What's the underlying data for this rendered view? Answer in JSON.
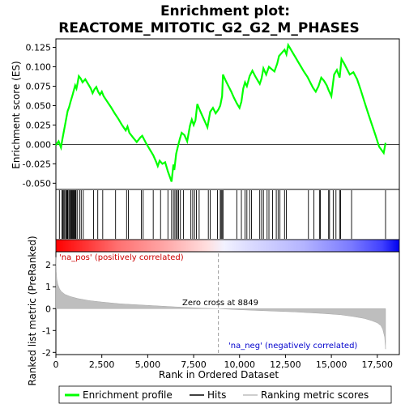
{
  "chart_data": {
    "type": "line",
    "title_line1": "Enrichment plot:",
    "title_line2": "REACTOME_MITOTIC_G2_G2_M_PHASES",
    "panels": {
      "es": {
        "ylabel": "Enrichment score (ES)",
        "ylim": [
          -0.058,
          0.136
        ],
        "yticks": [
          -0.05,
          -0.025,
          0.0,
          0.025,
          0.05,
          0.075,
          0.1,
          0.125
        ],
        "ytick_labels": [
          "-0.050",
          "-0.025",
          "0.000",
          "0.025",
          "0.050",
          "0.075",
          "0.100",
          "0.125"
        ],
        "line_color": "#00ff00",
        "series": [
          {
            "x": [
              0,
              150,
              280,
              350,
              420,
              500,
              560,
              640,
              720,
              800,
              900,
              980,
              1050,
              1120,
              1180,
              1250,
              1350,
              1450,
              1600,
              1750,
              1900,
              2000,
              2100,
              2200,
              2300,
              2400,
              2500,
              2600,
              2800,
              3000,
              3200,
              3400,
              3600,
              3800,
              3900,
              4000,
              4200,
              4400,
              4600,
              4700,
              4900,
              5100,
              5300,
              5450,
              5550,
              5650,
              5800,
              5950,
              6100,
              6300,
              6400,
              6450,
              6550,
              6650,
              6750,
              6850,
              7000,
              7150,
              7300,
              7400,
              7500,
              7600,
              7700,
              7800,
              7950,
              8100,
              8250,
              8400,
              8550,
              8700,
              8850,
              8950,
              9050,
              9100,
              9250,
              9400,
              9550,
              9700,
              9850,
              10000,
              10100,
              10200,
              10300,
              10400,
              10550,
              10700,
              10850,
              11000,
              11100,
              11200,
              11300,
              11450,
              11600,
              11750,
              11900,
              12050,
              12150,
              12300,
              12450,
              12550,
              12650,
              12750,
              12900,
              13050,
              13200,
              13350,
              13500,
              13700,
              13850,
              14000,
              14150,
              14300,
              14450,
              14600,
              14750,
              14850,
              15000,
              15150,
              15300,
              15450,
              15550,
              15700,
              15850,
              16000,
              16200,
              16400,
              16600,
              16800,
              17000,
              17200,
              17400,
              17600,
              17850,
              17950
            ],
            "y": [
              -0.001,
              0.004,
              -0.004,
              0.006,
              0.015,
              0.025,
              0.033,
              0.043,
              0.048,
              0.055,
              0.063,
              0.07,
              0.076,
              0.072,
              0.079,
              0.088,
              0.085,
              0.08,
              0.084,
              0.078,
              0.072,
              0.066,
              0.071,
              0.074,
              0.068,
              0.064,
              0.068,
              0.062,
              0.055,
              0.048,
              0.04,
              0.033,
              0.025,
              0.018,
              0.023,
              0.015,
              0.009,
              0.003,
              0.009,
              0.011,
              0.002,
              -0.006,
              -0.014,
              -0.022,
              -0.028,
              -0.021,
              -0.025,
              -0.023,
              -0.035,
              -0.048,
              -0.026,
              -0.033,
              -0.012,
              -0.002,
              0.007,
              0.015,
              0.012,
              0.004,
              0.024,
              0.032,
              0.025,
              0.031,
              0.052,
              0.046,
              0.038,
              0.03,
              0.022,
              0.042,
              0.047,
              0.04,
              0.045,
              0.05,
              0.062,
              0.09,
              0.082,
              0.075,
              0.068,
              0.06,
              0.053,
              0.047,
              0.055,
              0.072,
              0.08,
              0.075,
              0.088,
              0.095,
              0.088,
              0.082,
              0.078,
              0.085,
              0.098,
              0.09,
              0.1,
              0.097,
              0.094,
              0.104,
              0.114,
              0.118,
              0.122,
              0.116,
              0.128,
              0.124,
              0.118,
              0.112,
              0.106,
              0.1,
              0.094,
              0.087,
              0.08,
              0.073,
              0.068,
              0.075,
              0.086,
              0.082,
              0.076,
              0.07,
              0.062,
              0.09,
              0.096,
              0.086,
              0.11,
              0.104,
              0.097,
              0.09,
              0.093,
              0.084,
              0.07,
              0.055,
              0.04,
              0.026,
              0.012,
              -0.003,
              -0.011,
              0.002
            ]
          }
        ]
      },
      "hits": {
        "positions": [
          190,
          330,
          380,
          430,
          480,
          540,
          590,
          620,
          660,
          720,
          780,
          820,
          860,
          900,
          940,
          980,
          1010,
          1060,
          1100,
          1180,
          1300,
          1380,
          1490,
          2050,
          2280,
          2550,
          3250,
          3850,
          3950,
          4650,
          4750,
          5300,
          5700,
          6100,
          6300,
          6400,
          6480,
          6550,
          6620,
          6680,
          6780,
          6950,
          7350,
          7450,
          7550,
          7650,
          7800,
          8300,
          8400,
          8800,
          8950,
          9000,
          9050,
          9100,
          9850,
          10100,
          10300,
          10400,
          10550,
          10650,
          11100,
          11200,
          11300,
          11500,
          11600,
          11800,
          12000,
          12100,
          12200,
          12450,
          12550,
          13750,
          14050,
          14350,
          14400,
          14850,
          14900,
          15100,
          15250,
          15450,
          15500,
          16100,
          17950
        ]
      },
      "colorbar": {
        "label_pos": "'na_pos' (positively correlated)",
        "label_neg": "'na_neg' (negatively correlated)"
      },
      "metric": {
        "ylabel": "Ranked list metric (PreRanked)",
        "ylim": [
          -2.1,
          2.6
        ],
        "yticks": [
          -2,
          -1,
          0,
          1,
          2
        ],
        "ytick_labels": [
          "-2",
          "-1",
          "0",
          "1",
          "2"
        ],
        "fill_color": "#bebebe",
        "zero_cross_label": "Zero cross at 8849",
        "zero_cross": 8849,
        "profile_x": [
          0,
          20,
          50,
          100,
          200,
          300,
          500,
          800,
          1200,
          1800,
          2500,
          3500,
          5000,
          6500,
          8000,
          8849,
          10000,
          11500,
          13000,
          14500,
          15500,
          16200,
          16800,
          17200,
          17500,
          17700,
          17800,
          17900,
          17950
        ],
        "profile_y": [
          2.35,
          1.7,
          1.35,
          1.12,
          0.9,
          0.78,
          0.65,
          0.55,
          0.46,
          0.37,
          0.3,
          0.22,
          0.15,
          0.08,
          0.02,
          0.0,
          -0.05,
          -0.1,
          -0.15,
          -0.22,
          -0.28,
          -0.36,
          -0.45,
          -0.55,
          -0.65,
          -0.78,
          -0.95,
          -1.3,
          -1.85
        ]
      }
    },
    "x_axis": {
      "label": "Rank in Ordered Dataset",
      "xlim": [
        0,
        18700
      ],
      "ticks": [
        0,
        2500,
        5000,
        7500,
        10000,
        12500,
        15000,
        17500
      ],
      "tick_labels": [
        "0",
        "2,500",
        "5,000",
        "7,500",
        "10,000",
        "12,500",
        "15,000",
        "17,500"
      ]
    },
    "legend": {
      "placement": "bottom",
      "items": [
        {
          "label": "Enrichment profile",
          "color": "#00ff00"
        },
        {
          "label": "Hits",
          "color": "#000000"
        },
        {
          "label": "Ranking metric scores",
          "color": "#bebebe"
        }
      ]
    }
  }
}
